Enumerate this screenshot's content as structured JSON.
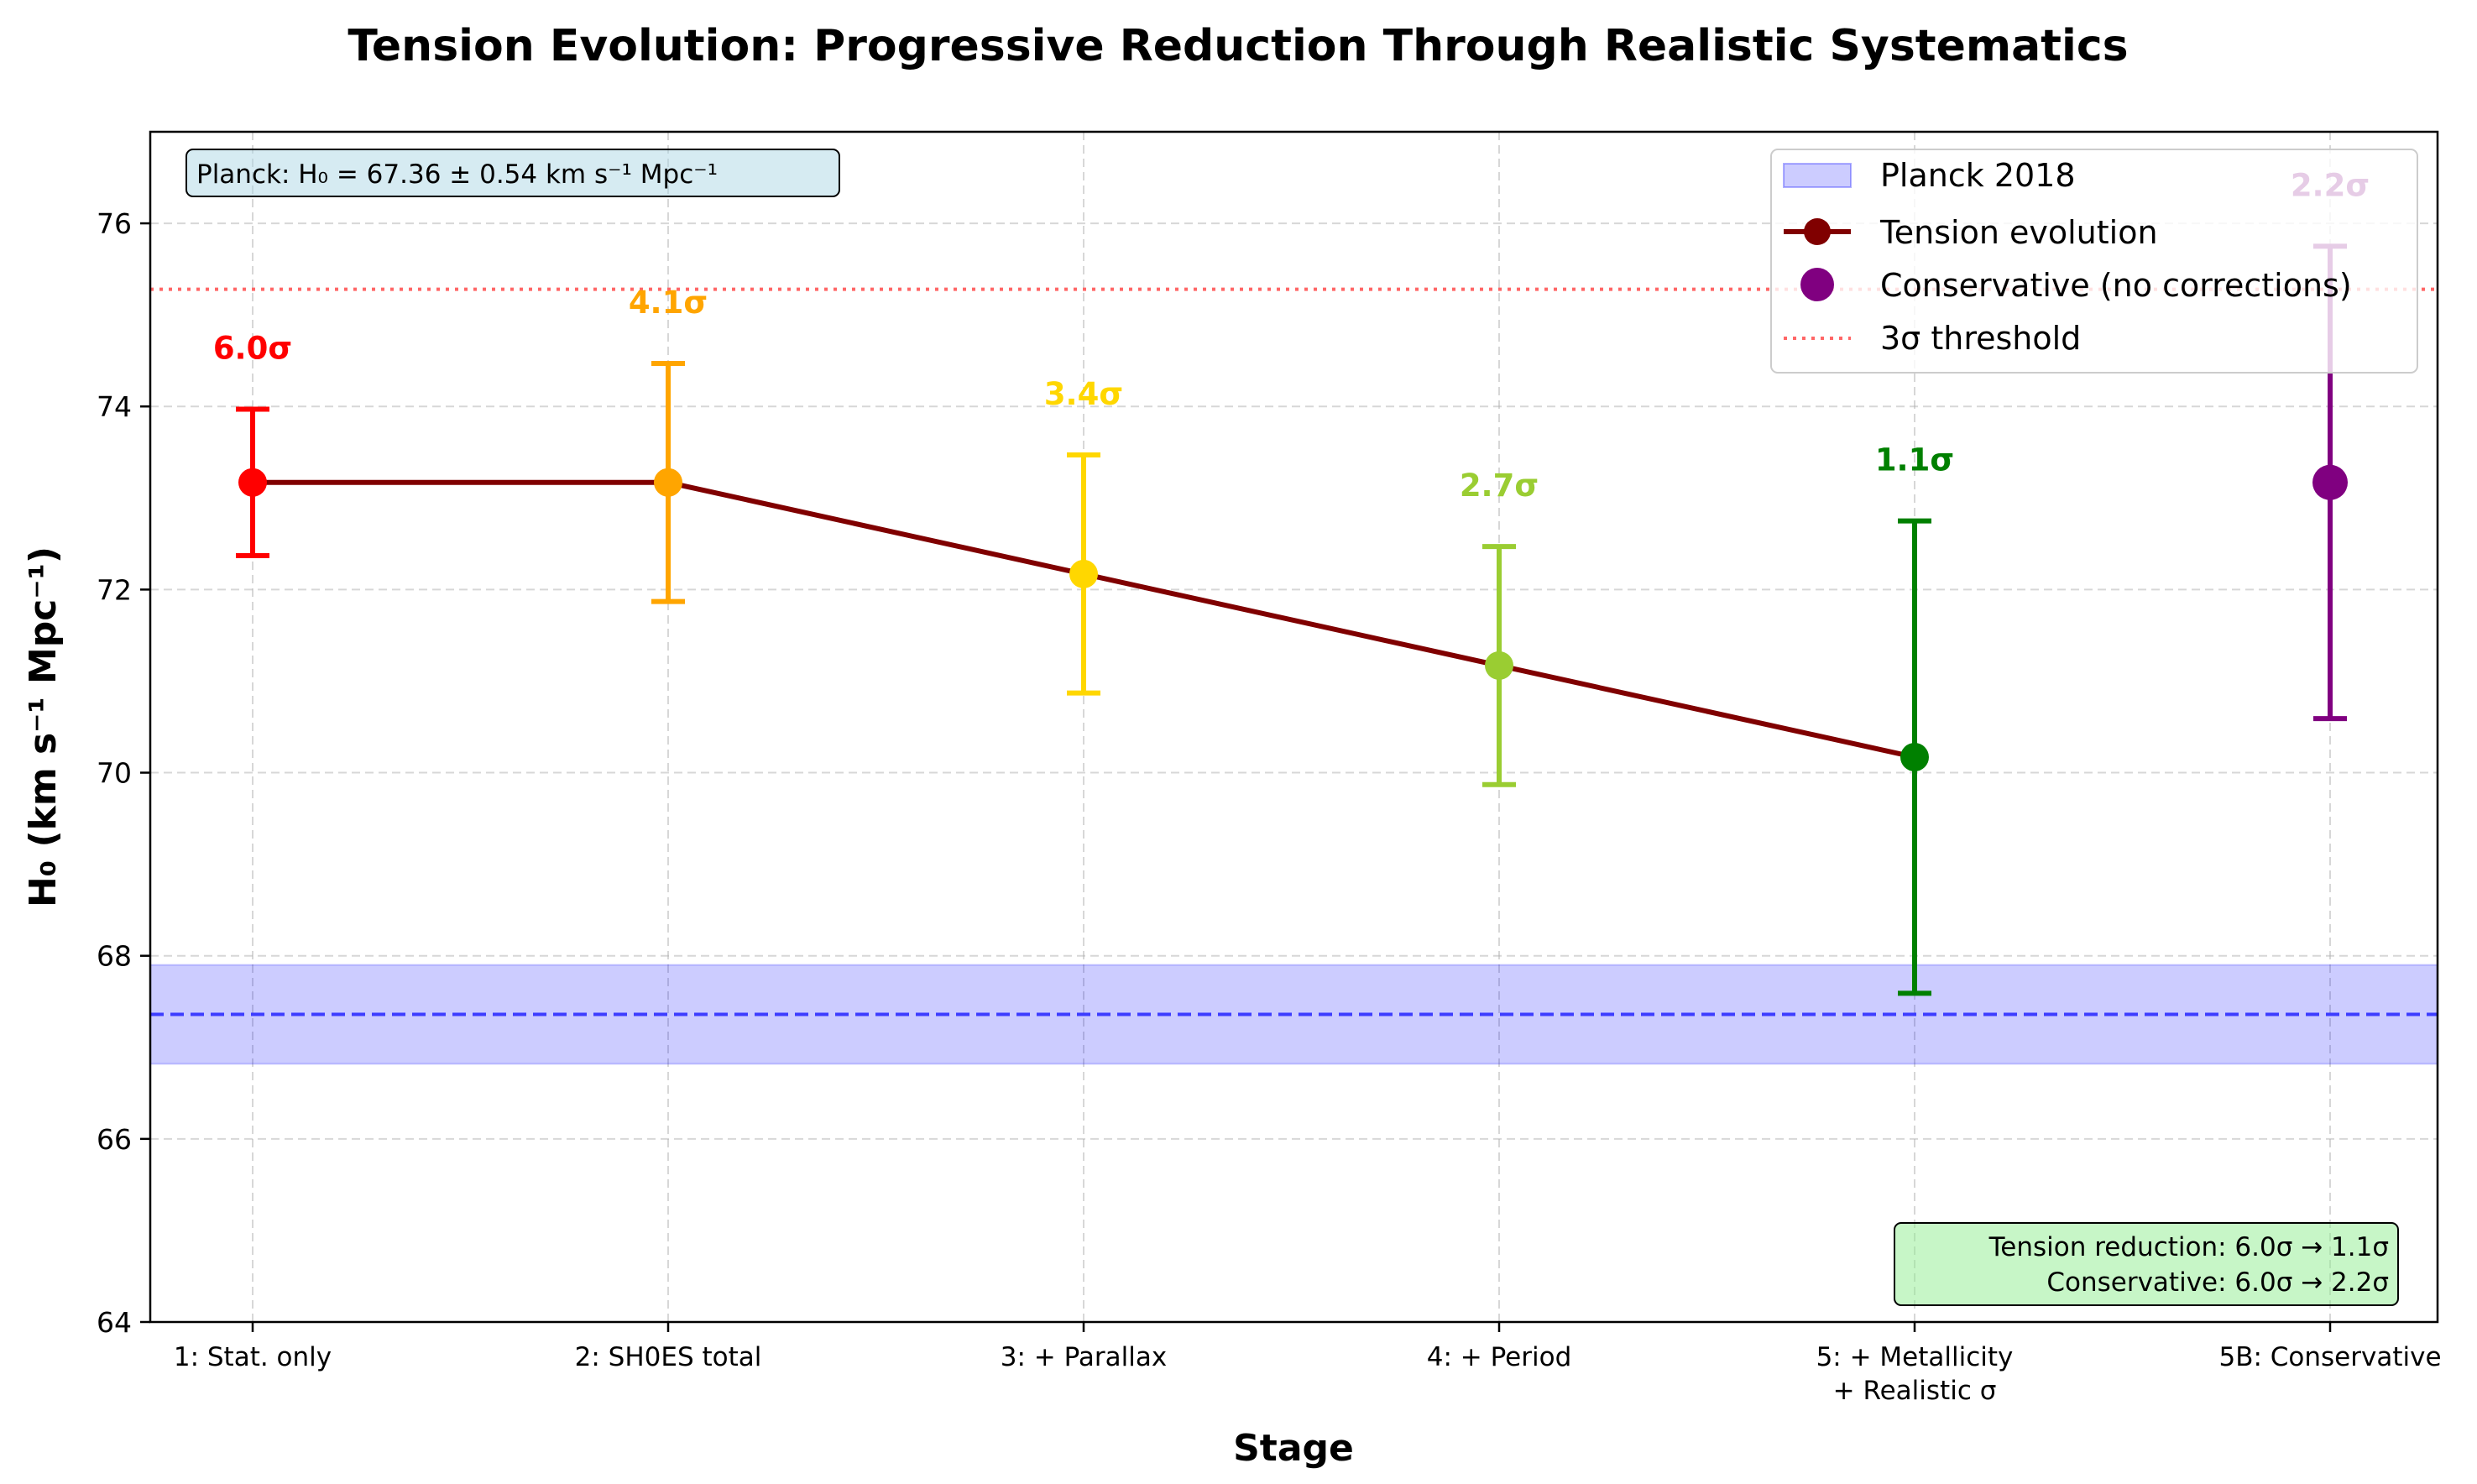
{
  "chart_data": {
    "type": "errorbar-line",
    "title": "Tension Evolution: Progressive Reduction Through Realistic Systematics",
    "xlabel": "Stage",
    "ylabel": "H₀ (km s⁻¹ Mpc⁻¹)",
    "ylim": [
      64,
      77
    ],
    "yticks": [
      "64",
      "66",
      "68",
      "70",
      "72",
      "74",
      "76"
    ],
    "grid": true,
    "legend_position": "top-right",
    "categories": [
      "1: Stat. only",
      "2: SH0ES total",
      "3: + Parallax",
      "4: + Period",
      "5: + Metallicity\n+ Realistic σ",
      "5B: Conservative"
    ],
    "points": [
      {
        "stage": "1: Stat. only",
        "value": 73.17,
        "err_low": 0.8,
        "err_high": 0.8,
        "sigma_label": "6.0σ",
        "color": "#ff0000"
      },
      {
        "stage": "2: SH0ES total",
        "value": 73.17,
        "err_low": 1.3,
        "err_high": 1.3,
        "sigma_label": "4.1σ",
        "color": "#ffa500"
      },
      {
        "stage": "3: + Parallax",
        "value": 72.17,
        "err_low": 1.3,
        "err_high": 1.3,
        "sigma_label": "3.4σ",
        "color": "#ffd700"
      },
      {
        "stage": "4: + Period",
        "value": 71.17,
        "err_low": 1.3,
        "err_high": 1.3,
        "sigma_label": "2.7σ",
        "color": "#9acd32"
      },
      {
        "stage": "5: + Metallicity\n+ Realistic σ",
        "value": 70.17,
        "err_low": 2.58,
        "err_high": 2.58,
        "sigma_label": "1.1σ",
        "color": "#008000"
      },
      {
        "stage": "5B: Conservative",
        "value": 73.17,
        "err_low": 2.58,
        "err_high": 2.58,
        "sigma_label": "2.2σ",
        "color": "#800080"
      }
    ],
    "series": [
      {
        "name": "Tension evolution",
        "color": "#800000",
        "stages": [
          0,
          1,
          2,
          3,
          4
        ]
      },
      {
        "name": "Conservative (no corrections)",
        "color": "#800080",
        "stages": [
          5
        ]
      }
    ],
    "planck": {
      "name": "Planck 2018",
      "value": 67.36,
      "err": 0.54,
      "color": "#0000ff"
    },
    "threshold": {
      "name": "3σ threshold",
      "value": 75.28,
      "color": "#ff6666"
    },
    "annotations": {
      "planck_box": "Planck: H₀ = 67.36 ± 0.54 km s⁻¹ Mpc⁻¹",
      "reduction_line1": "Tension reduction: 6.0σ → 1.1σ",
      "reduction_line2": "Conservative: 6.0σ → 2.2σ"
    }
  }
}
